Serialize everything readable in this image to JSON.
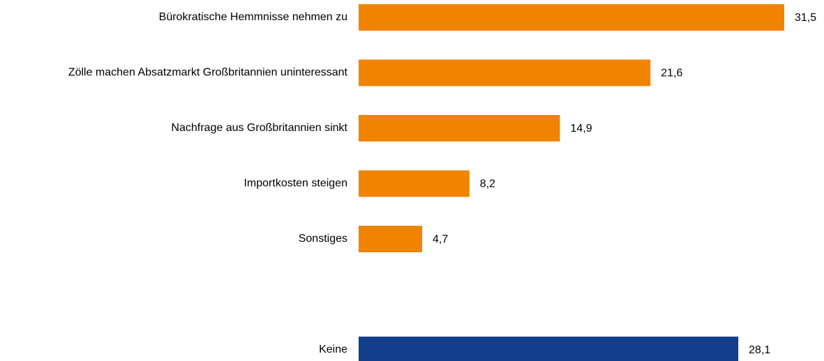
{
  "chart_data": {
    "type": "bar",
    "categories": [
      "Bürokratische Hemmnisse nehmen zu",
      "Zölle machen Absatzmarkt Großbritannien uninteressant",
      "Nachfrage aus Großbritannien sinkt",
      "Importkosten steigen",
      "Sonstiges",
      null,
      "Keine"
    ],
    "values": [
      31.5,
      21.6,
      14.9,
      8.2,
      4.7,
      null,
      28.1
    ],
    "value_labels": [
      "31,5",
      "21,6",
      "14,9",
      "8,2",
      "4,7",
      null,
      "28,1"
    ],
    "colors": [
      "#f08300",
      "#f08300",
      "#f08300",
      "#f08300",
      "#f08300",
      null,
      "#123f8c"
    ]
  }
}
